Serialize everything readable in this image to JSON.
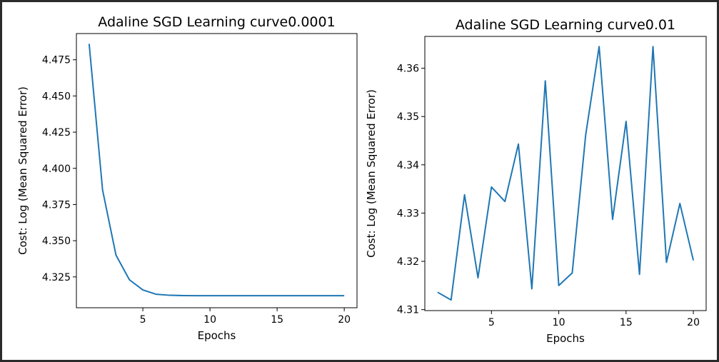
{
  "chart_data": [
    {
      "type": "line",
      "title": "Adaline SGD Learning curve0.0001",
      "xlabel": "Epochs",
      "ylabel": "Cost: Log (Mean Squared Error)",
      "xlim": [
        0.05,
        20.95
      ],
      "ylim": [
        4.3037,
        4.4931
      ],
      "xticks": [
        5,
        10,
        15,
        20
      ],
      "yticks": [
        4.325,
        4.35,
        4.375,
        4.4,
        4.425,
        4.45,
        4.475
      ],
      "ytick_labels": [
        "4.325",
        "4.350",
        "4.375",
        "4.400",
        "4.425",
        "4.450",
        "4.475"
      ],
      "grid": false,
      "line_color": "#1f77b4",
      "series": [
        {
          "x": [
            1,
            2,
            3,
            4,
            5,
            6,
            7,
            8,
            9,
            10,
            11,
            12,
            13,
            14,
            15,
            16,
            17,
            18,
            19,
            20
          ],
          "values": [
            4.486,
            4.385,
            4.34,
            4.323,
            4.316,
            4.313,
            4.3123,
            4.3121,
            4.312,
            4.312,
            4.312,
            4.312,
            4.312,
            4.312,
            4.312,
            4.312,
            4.312,
            4.312,
            4.312,
            4.312
          ]
        }
      ]
    },
    {
      "type": "line",
      "title": "Adaline SGD Learning curve0.01",
      "xlabel": "Epochs",
      "ylabel": "Cost: Log (Mean Squared Error)",
      "xlim": [
        0.05,
        20.95
      ],
      "ylim": [
        4.3098,
        4.3666
      ],
      "xticks": [
        5,
        10,
        15,
        20
      ],
      "yticks": [
        4.31,
        4.32,
        4.33,
        4.34,
        4.35,
        4.36
      ],
      "ytick_labels": [
        "4.31",
        "4.32",
        "4.33",
        "4.34",
        "4.35",
        "4.36"
      ],
      "grid": false,
      "line_color": "#1f77b4",
      "series": [
        {
          "x": [
            1,
            2,
            3,
            4,
            5,
            6,
            7,
            8,
            9,
            10,
            11,
            12,
            13,
            14,
            15,
            16,
            17,
            18,
            19,
            20
          ],
          "values": [
            4.3136,
            4.312,
            4.3338,
            4.3166,
            4.3354,
            4.3324,
            4.3443,
            4.3143,
            4.3574,
            4.315,
            4.3176,
            4.3462,
            4.3645,
            4.3287,
            4.349,
            4.3173,
            4.3645,
            4.3198,
            4.332,
            4.3202
          ]
        }
      ]
    }
  ]
}
